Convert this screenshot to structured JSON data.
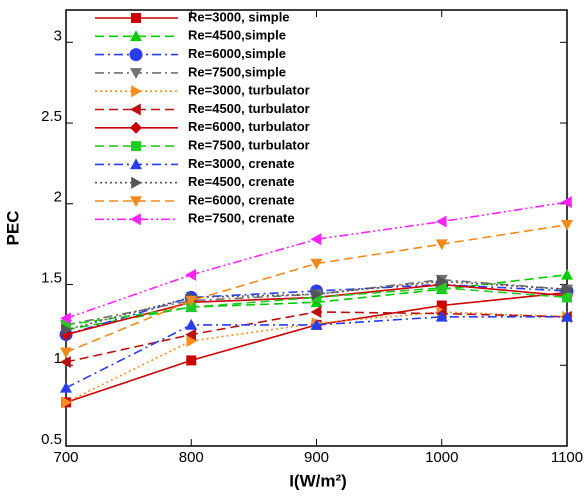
{
  "chart_data": {
    "type": "line",
    "x": [
      700,
      800,
      900,
      1000,
      1100
    ],
    "xlim": [
      700,
      1100
    ],
    "xticks": [
      700,
      800,
      900,
      1000,
      1100
    ],
    "ylim": [
      0.5,
      3.2
    ],
    "yticks": [
      0.5,
      1,
      1.5,
      2,
      2.5,
      3
    ],
    "xlabel": "I(W/m²)",
    "ylabel": "PEC",
    "legend": "upper left",
    "series": [
      {
        "name": "Re=3000, simple",
        "color": "#cc0000",
        "marker": "square",
        "dash": "solid",
        "values": [
          0.77,
          1.03,
          1.25,
          1.37,
          1.45
        ]
      },
      {
        "name": "Re=4500,simple",
        "color": "#00cc00",
        "marker": "triangle-up",
        "dash": "dashed",
        "values": [
          1.22,
          1.36,
          1.39,
          1.47,
          1.56
        ]
      },
      {
        "name": "Re=6000,simple",
        "color": "#2a3cf0",
        "marker": "circle",
        "dash": "dashdot",
        "values": [
          1.19,
          1.42,
          1.46,
          1.5,
          1.46
        ]
      },
      {
        "name": "Re=7500,simple",
        "color": "#707070",
        "marker": "triangle-down",
        "dash": "dashdot",
        "values": [
          1.25,
          1.4,
          1.44,
          1.53,
          1.47
        ]
      },
      {
        "name": "Re=3000, turbulator",
        "color": "#ff8c1a",
        "marker": "triangle-right",
        "dash": "dotted",
        "values": [
          0.77,
          1.15,
          1.26,
          1.33,
          1.3
        ]
      },
      {
        "name": "Re=4500, turbulator",
        "color": "#bb1111",
        "marker": "triangle-left",
        "dash": "dashed",
        "values": [
          1.02,
          1.19,
          1.33,
          1.32,
          1.3
        ]
      },
      {
        "name": "Re=6000, turbulator",
        "color": "#cc0000",
        "marker": "diamond",
        "dash": "solid",
        "values": [
          1.19,
          1.39,
          1.42,
          1.5,
          1.43
        ]
      },
      {
        "name": "Re=7500, turbulator",
        "color": "#22cc22",
        "marker": "square",
        "dash": "dashed",
        "values": [
          1.25,
          1.36,
          1.42,
          1.48,
          1.42
        ]
      },
      {
        "name": "Re=3000, crenate",
        "color": "#2a3cf0",
        "marker": "triangle-up",
        "dash": "dashdot",
        "values": [
          0.86,
          1.25,
          1.25,
          1.3,
          1.3
        ]
      },
      {
        "name": "Re=4500, crenate",
        "color": "#555555",
        "marker": "triangle-right",
        "dash": "dotted",
        "values": [
          1.22,
          1.42,
          1.44,
          1.52,
          1.47
        ]
      },
      {
        "name": "Re=6000, crenate",
        "color": "#f08a1c",
        "marker": "triangle-down",
        "dash": "dashed",
        "values": [
          1.08,
          1.4,
          1.63,
          1.75,
          1.87
        ]
      },
      {
        "name": "Re=7500, crenate",
        "color": "#ff22ff",
        "marker": "triangle-left",
        "dash": "dashdotdot",
        "values": [
          1.29,
          1.56,
          1.78,
          1.89,
          2.01
        ]
      }
    ]
  }
}
